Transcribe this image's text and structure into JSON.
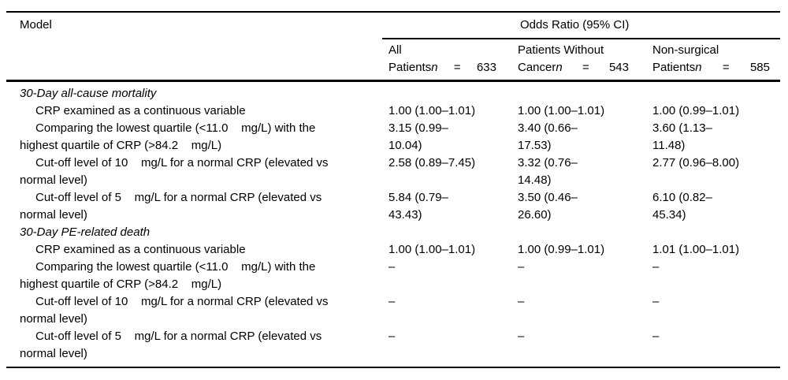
{
  "table": {
    "model_header": "Model",
    "or_header": "Odds Ratio (95% CI)",
    "columns": [
      {
        "line1": "All",
        "prefix": "Patients",
        "n": "n",
        "eq": "=",
        "count": "633"
      },
      {
        "line1": "Patients Without",
        "prefix": "Cancer",
        "n": "n",
        "eq": "=",
        "count": "543"
      },
      {
        "line1": "Non-surgical",
        "prefix": "Patients",
        "n": "n",
        "eq": "=",
        "count": "585"
      }
    ],
    "rows": [
      {
        "type": "section",
        "label": "30-Day all-cause mortality"
      },
      {
        "type": "data",
        "label": "CRP examined as a continuous variable",
        "v1": "1.00 (1.00–1.01)",
        "v2": "1.00 (1.00–1.01)",
        "v3": "1.00 (0.99–1.01)"
      },
      {
        "type": "data",
        "label": "Comparing the lowest quartile (<11.0    mg/L) with the\nhighest quartile of CRP (>84.2    mg/L)",
        "v1": "3.15 (0.99–\n10.04)",
        "v2": "3.40 (0.66–\n17.53)",
        "v3": "3.60 (1.13–\n11.48)"
      },
      {
        "type": "data",
        "label": "Cut-off level of 10    mg/L for a normal CRP (elevated vs\nnormal level)",
        "v1": "2.58 (0.89–7.45)",
        "v2": "3.32 (0.76–\n14.48)",
        "v3": "2.77 (0.96–8.00)"
      },
      {
        "type": "data",
        "label": "Cut-off level of 5    mg/L for a normal CRP (elevated vs\nnormal level)",
        "v1": "5.84 (0.79–\n43.43)",
        "v2": "3.50 (0.46–\n26.60)",
        "v3": "6.10 (0.82–\n45.34)"
      },
      {
        "type": "section",
        "label": "30-Day PE-related death"
      },
      {
        "type": "data",
        "label": "CRP examined as a continuous variable",
        "v1": "1.00 (1.00–1.01)",
        "v2": "1.00 (0.99–1.01)",
        "v3": "1.01 (1.00–1.01)"
      },
      {
        "type": "data",
        "label": "Comparing the lowest quartile (<11.0    mg/L) with the\nhighest quartile of CRP (>84.2    mg/L)",
        "v1": "–",
        "v2": "–",
        "v3": "–"
      },
      {
        "type": "data",
        "label": "Cut-off level of 10    mg/L for a normal CRP (elevated vs\nnormal level)",
        "v1": "–",
        "v2": "–",
        "v3": "–"
      },
      {
        "type": "data",
        "label": "Cut-off level of 5    mg/L for a normal CRP (elevated vs\nnormal level)",
        "v1": "–",
        "v2": "–",
        "v3": "–"
      }
    ]
  }
}
